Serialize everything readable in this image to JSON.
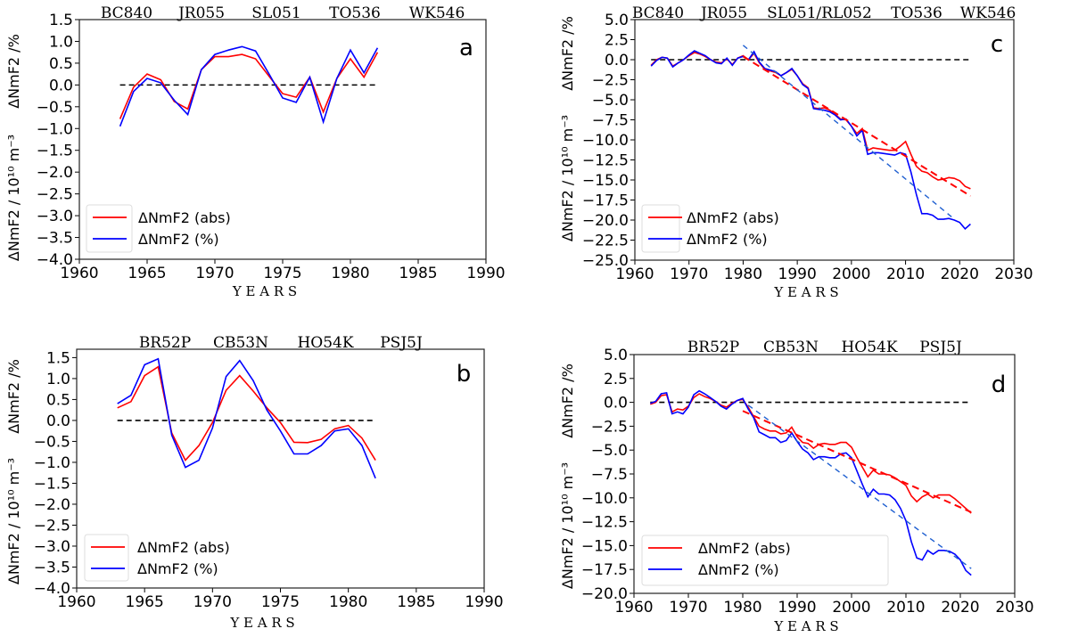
{
  "chart_data": [
    {
      "panel": "a",
      "type": "line",
      "stations": [
        "BC840",
        "JR055",
        "SL051",
        "TO536",
        "WK546"
      ],
      "xlabel": "Y E A R S",
      "ylabel_top": "ΔNmF2 /%",
      "ylabel_bottom": "ΔNmF2 / 10¹⁰ m⁻³",
      "xlim": [
        1960,
        1990
      ],
      "ylim": [
        -4.0,
        1.5
      ],
      "xticks": [
        1960,
        1965,
        1970,
        1975,
        1980,
        1985,
        1990
      ],
      "yticks": [
        -4.0,
        -3.5,
        -3.0,
        -2.5,
        -2.0,
        -1.5,
        -1.0,
        -0.5,
        0.0,
        0.5,
        1.0,
        1.5
      ],
      "legend": [
        "ΔNmF2 (abs)",
        "ΔNmF2 (%)"
      ],
      "legend_placement": "lower-left",
      "x_start": 1963,
      "series": [
        {
          "name": "ΔNmF2 (abs)",
          "color": "#ff0000",
          "values": [
            -0.78,
            -0.05,
            0.25,
            0.12,
            -0.38,
            -0.55,
            0.35,
            0.65,
            0.65,
            0.7,
            0.6,
            0.2,
            -0.2,
            -0.28,
            0.18,
            -0.62,
            0.15,
            0.6,
            0.18,
            0.75
          ]
        },
        {
          "name": "ΔNmF2 (%)",
          "color": "#0000ff",
          "values": [
            -0.95,
            -0.15,
            0.15,
            0.05,
            -0.35,
            -0.68,
            0.35,
            0.7,
            0.8,
            0.88,
            0.78,
            0.25,
            -0.3,
            -0.4,
            0.18,
            -0.85,
            0.15,
            0.8,
            0.28,
            0.85
          ]
        }
      ],
      "zero_line": [
        1963,
        1982
      ],
      "trends": []
    },
    {
      "panel": "c",
      "type": "line",
      "stations": [
        "BC840",
        "JR055",
        "SL051/RL052",
        "TO536",
        "WK546"
      ],
      "xlabel": "Y E A R S",
      "ylabel_top": "ΔNmF2 /%",
      "ylabel_bottom": "ΔNmF2 / 10¹⁰ m⁻³",
      "xlim": [
        1960,
        2030
      ],
      "ylim": [
        -25.0,
        5.0
      ],
      "xticks": [
        1960,
        1970,
        1980,
        1990,
        2000,
        2010,
        2020,
        2030
      ],
      "yticks": [
        -25.0,
        -22.5,
        -20.0,
        -17.5,
        -15.0,
        -12.5,
        -10.0,
        -7.5,
        -5.0,
        -2.5,
        0.0,
        2.5,
        5.0
      ],
      "legend": [
        "ΔNmF2 (abs)",
        "ΔNmF2 (%)"
      ],
      "legend_placement": "lower-left",
      "x_start": 1963,
      "series": [
        {
          "name": "ΔNmF2 (abs)",
          "color": "#ff0000",
          "values": [
            -0.7,
            0,
            0.3,
            0.2,
            -0.8,
            -0.4,
            0,
            0.5,
            0.9,
            0.7,
            0.4,
            0,
            -0.3,
            -0.4,
            0.1,
            -0.6,
            0.2,
            0.5,
            0,
            0.8,
            -0.4,
            -1.2,
            -1.4,
            -1.6,
            -2.0,
            -1.6,
            -1.2,
            -2.0,
            -3.0,
            -3.5,
            -6.0,
            -6.1,
            -6.0,
            -6.3,
            -6.8,
            -7.4,
            -7.5,
            -8.3,
            -9.2,
            -8.6,
            -11.3,
            -11.0,
            -11.1,
            -11.2,
            -11.3,
            -11.3,
            -10.8,
            -10.2,
            -11.8,
            -13.3,
            -13.9,
            -14.1,
            -14.6,
            -15.0,
            -14.9,
            -14.7,
            -14.8,
            -15.1,
            -15.8,
            -16.1
          ]
        },
        {
          "name": "ΔNmF2 (%)",
          "color": "#0000ff",
          "values": [
            -0.8,
            -0.1,
            0.3,
            0.2,
            -0.9,
            -0.4,
            0,
            0.6,
            1.1,
            0.8,
            0.5,
            0,
            -0.4,
            -0.5,
            0.2,
            -0.7,
            0.2,
            0.4,
            0,
            1.0,
            -0.3,
            -1.1,
            -1.3,
            -1.5,
            -2.0,
            -1.6,
            -1.1,
            -2.0,
            -3.1,
            -3.6,
            -6.1,
            -6.2,
            -6.3,
            -6.5,
            -6.9,
            -7.5,
            -7.4,
            -8.3,
            -9.5,
            -8.8,
            -11.8,
            -11.6,
            -11.6,
            -11.7,
            -11.8,
            -11.9,
            -11.6,
            -11.8,
            -14.0,
            -16.8,
            -19.2,
            -19.2,
            -19.4,
            -19.9,
            -19.9,
            -19.8,
            -20.0,
            -20.3,
            -21.1,
            -20.5
          ]
        }
      ],
      "zero_line": [
        1963,
        2022
      ],
      "trends": [
        {
          "color": "#ff0000",
          "x": [
            1980,
            2022
          ],
          "y": [
            0.4,
            -17.0
          ]
        },
        {
          "color": "#1f5fd0",
          "x": [
            1980,
            2018.5
          ],
          "y": [
            1.8,
            -19.6
          ]
        }
      ]
    },
    {
      "panel": "b",
      "type": "line",
      "stations": [
        "BR52P",
        "CB53N",
        "HO54K",
        "PSJ5J"
      ],
      "xlabel": "Y E A R S",
      "ylabel_top": "ΔNmF2 /%",
      "ylabel_bottom": "ΔNmF2 / 10¹⁰ m⁻³",
      "xlim": [
        1960,
        1990
      ],
      "ylim": [
        -4.0,
        1.7
      ],
      "xticks": [
        1960,
        1965,
        1970,
        1975,
        1980,
        1985,
        1990
      ],
      "yticks": [
        -4.0,
        -3.5,
        -3.0,
        -2.5,
        -2.0,
        -1.5,
        -1.0,
        -0.5,
        0.0,
        0.5,
        1.0,
        1.5
      ],
      "legend": [
        "ΔNmF2 (abs)",
        "ΔNmF2 (%)"
      ],
      "legend_placement": "lower-left",
      "x_start": 1963,
      "series": [
        {
          "name": "ΔNmF2 (abs)",
          "color": "#ff0000",
          "values": [
            0.3,
            0.45,
            1.07,
            1.28,
            -0.3,
            -0.95,
            -0.6,
            -0.05,
            0.72,
            1.07,
            0.7,
            0.3,
            -0.05,
            -0.52,
            -0.53,
            -0.45,
            -0.2,
            -0.12,
            -0.42,
            -0.95
          ]
        },
        {
          "name": "ΔNmF2 (%)",
          "color": "#0000ff",
          "values": [
            0.4,
            0.6,
            1.33,
            1.47,
            -0.35,
            -1.12,
            -0.95,
            -0.18,
            1.05,
            1.43,
            0.95,
            0.25,
            -0.25,
            -0.8,
            -0.8,
            -0.6,
            -0.25,
            -0.2,
            -0.6,
            -1.38
          ]
        }
      ],
      "zero_line": [
        1963,
        1982
      ],
      "trends": []
    },
    {
      "panel": "d",
      "type": "line",
      "stations": [
        "BR52P",
        "CB53N",
        "HO54K",
        "PSJ5J"
      ],
      "xlabel": "Y E A R S",
      "ylabel_top": "ΔNmF2 /%",
      "ylabel_bottom": "ΔNmF2 / 10¹⁰ m⁻³",
      "xlim": [
        1960,
        2030
      ],
      "ylim": [
        -20.0,
        5.0
      ],
      "xticks": [
        1960,
        1970,
        1980,
        1990,
        2000,
        2010,
        2020,
        2030
      ],
      "yticks": [
        -20.0,
        -17.5,
        -15.0,
        -12.5,
        -10.0,
        -7.5,
        -5.0,
        -2.5,
        0.0,
        2.5,
        5.0
      ],
      "legend": [
        "ΔNmF2 (abs)",
        "ΔNmF2 (%)"
      ],
      "legend_placement": "lower-left",
      "x_start": 1963,
      "series": [
        {
          "name": "ΔNmF2 (abs)",
          "color": "#ff0000",
          "values": [
            -0.2,
            0,
            0.7,
            0.8,
            -1.0,
            -0.7,
            -0.8,
            -0.4,
            0.5,
            0.9,
            0.6,
            0.4,
            0.1,
            -0.3,
            -0.5,
            -0.1,
            0.2,
            0.3,
            -0.5,
            -1.5,
            -2.5,
            -2.8,
            -3.0,
            -3.0,
            -3.3,
            -3.2,
            -2.6,
            -3.6,
            -4.2,
            -4.3,
            -4.8,
            -4.4,
            -4.3,
            -4.4,
            -4.4,
            -4.2,
            -4.2,
            -4.7,
            -5.8,
            -6.8,
            -7.8,
            -7.1,
            -7.5,
            -7.5,
            -7.6,
            -7.9,
            -8.3,
            -8.7,
            -9.8,
            -10.4,
            -9.9,
            -9.6,
            -10.0,
            -9.7,
            -9.7,
            -9.7,
            -10.1,
            -10.6,
            -11.1,
            -11.6
          ]
        },
        {
          "name": "ΔNmF2 (%)",
          "color": "#0000ff",
          "values": [
            -0.1,
            0.1,
            0.9,
            1.0,
            -1.2,
            -1.0,
            -1.2,
            -0.5,
            0.8,
            1.2,
            0.9,
            0.5,
            0.1,
            -0.4,
            -0.7,
            -0.2,
            0.2,
            0.4,
            -0.7,
            -1.6,
            -3.1,
            -3.4,
            -3.7,
            -3.7,
            -4.2,
            -4.0,
            -3.2,
            -4.1,
            -4.9,
            -5.3,
            -6.0,
            -5.7,
            -5.7,
            -5.8,
            -5.8,
            -5.4,
            -5.3,
            -5.8,
            -7.2,
            -8.6,
            -9.9,
            -9.1,
            -9.6,
            -9.6,
            -9.7,
            -10.2,
            -11.1,
            -12.4,
            -14.6,
            -16.3,
            -16.5,
            -15.5,
            -15.9,
            -15.5,
            -15.5,
            -15.6,
            -15.9,
            -16.5,
            -17.6,
            -18.1
          ]
        }
      ],
      "zero_line": [
        1963,
        2022
      ],
      "trends": [
        {
          "color": "#ff0000",
          "x": [
            1980,
            2022
          ],
          "y": [
            -0.9,
            -11.5
          ]
        },
        {
          "color": "#1f5fd0",
          "x": [
            1981,
            2022
          ],
          "y": [
            -0.3,
            -17.4
          ]
        }
      ]
    }
  ]
}
